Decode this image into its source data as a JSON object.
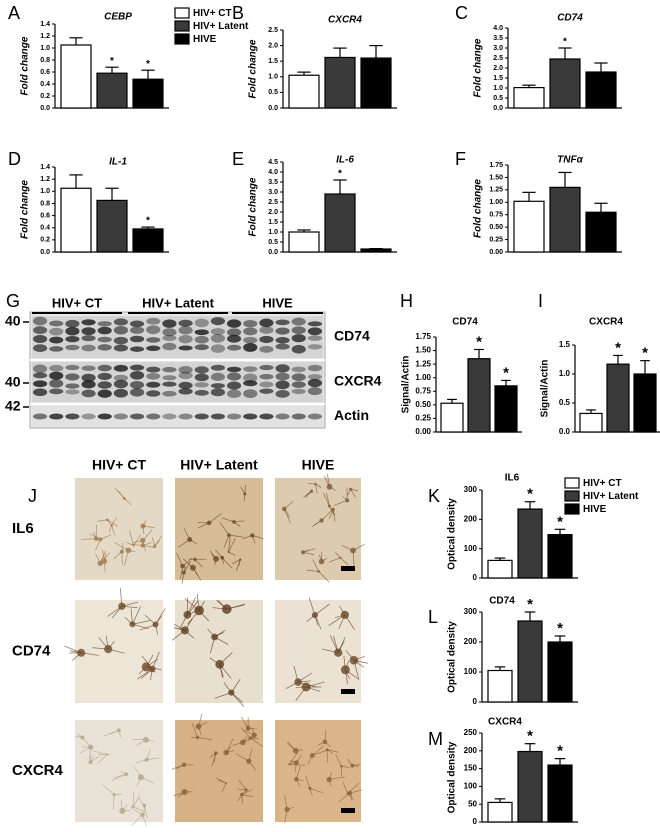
{
  "chart_data": [
    {
      "type": "bar",
      "panel": "A",
      "title": "CEBP",
      "ylabel": "Fold change",
      "ylim": [
        0,
        1.4
      ],
      "yticks": [
        {
          "value": 0,
          "label": "0.0"
        },
        0.2,
        0.4,
        0.6,
        0.8,
        {
          "value": 1,
          "label": "1.0"
        },
        1.2,
        1.4
      ],
      "series": [
        {
          "name": "HIV+ CT",
          "color": "#ffffff",
          "values": [
            1.05
          ],
          "errors": [
            0.12
          ]
        },
        {
          "name": "HIV+ Latent",
          "color": "#3a3a3a",
          "values": [
            0.58
          ],
          "errors": [
            0.1
          ],
          "annotation": "*"
        },
        {
          "name": "HIVE",
          "color": "#000000",
          "values": [
            0.48
          ],
          "errors": [
            0.15
          ],
          "annotation": "*"
        }
      ]
    },
    {
      "type": "bar",
      "panel": "B",
      "title": "CXCR4",
      "ylabel": "Fold change",
      "ylim": [
        0,
        2.5
      ],
      "yticks": [
        {
          "value": 0,
          "label": "0.0"
        },
        0.5,
        {
          "value": 1,
          "label": "1.0"
        },
        1.5,
        {
          "value": 2,
          "label": "2.0"
        },
        2.5
      ],
      "series": [
        {
          "color": "#ffffff",
          "values": [
            1.05
          ],
          "errors": [
            0.1
          ]
        },
        {
          "color": "#3a3a3a",
          "values": [
            1.62
          ],
          "errors": [
            0.3
          ]
        },
        {
          "color": "#000000",
          "values": [
            1.6
          ],
          "errors": [
            0.4
          ]
        }
      ]
    },
    {
      "type": "bar",
      "panel": "C",
      "title": "CD74",
      "ylabel": "Fold change",
      "ylim": [
        0,
        4
      ],
      "yticks": [
        {
          "value": 0,
          "label": "0.0"
        },
        0.5,
        {
          "value": 1,
          "label": "1.0"
        },
        1.5,
        {
          "value": 2,
          "label": "2.0"
        },
        2.5,
        {
          "value": 3,
          "label": "3.0"
        },
        3.5,
        {
          "value": 4,
          "label": "4.0"
        }
      ],
      "series": [
        {
          "color": "#ffffff",
          "values": [
            1.02
          ],
          "errors": [
            0.12
          ]
        },
        {
          "color": "#3a3a3a",
          "values": [
            2.45
          ],
          "errors": [
            0.55
          ],
          "annotation": "*"
        },
        {
          "color": "#000000",
          "values": [
            1.8
          ],
          "errors": [
            0.45
          ]
        }
      ]
    },
    {
      "type": "bar",
      "panel": "D",
      "title": "IL-1",
      "ylabel": "Fold change",
      "ylim": [
        0,
        1.4
      ],
      "yticks": [
        {
          "value": 0,
          "label": "0.0"
        },
        0.2,
        0.4,
        0.6,
        0.8,
        {
          "value": 1,
          "label": "1.0"
        },
        1.2,
        1.4
      ],
      "series": [
        {
          "color": "#ffffff",
          "values": [
            1.05
          ],
          "errors": [
            0.22
          ]
        },
        {
          "color": "#3a3a3a",
          "values": [
            0.85
          ],
          "errors": [
            0.2
          ]
        },
        {
          "color": "#000000",
          "values": [
            0.38
          ],
          "errors": [
            0.03
          ],
          "annotation": "*"
        }
      ]
    },
    {
      "type": "bar",
      "panel": "E",
      "title": "IL-6",
      "ylabel": "Fold change",
      "ylim": [
        0,
        4.5
      ],
      "yticks": [
        {
          "value": 0,
          "label": "0.0"
        },
        0.5,
        {
          "value": 1,
          "label": "1.0"
        },
        1.5,
        {
          "value": 2,
          "label": "2.0"
        },
        2.5,
        {
          "value": 3,
          "label": "3.0"
        },
        3.5,
        {
          "value": 4,
          "label": "4.0"
        },
        4.5
      ],
      "series": [
        {
          "color": "#ffffff",
          "values": [
            1.0
          ],
          "errors": [
            0.1
          ]
        },
        {
          "color": "#3a3a3a",
          "values": [
            2.9
          ],
          "errors": [
            0.7
          ],
          "annotation": "*"
        },
        {
          "color": "#000000",
          "values": [
            0.15
          ],
          "errors": [
            0.02
          ]
        }
      ]
    },
    {
      "type": "bar",
      "panel": "F",
      "title": "TNFα",
      "ylabel": "Fold change",
      "ylim": [
        0,
        1.75
      ],
      "yticks": [
        {
          "value": 0,
          "label": "0.00"
        },
        {
          "value": 0.25,
          "label": "0.25"
        },
        {
          "value": 0.5,
          "label": "0.50"
        },
        {
          "value": 0.75,
          "label": "0.75"
        },
        {
          "value": 1,
          "label": "1.00"
        },
        {
          "value": 1.25,
          "label": "1.25"
        },
        {
          "value": 1.5,
          "label": "1.50"
        },
        {
          "value": 1.75,
          "label": "1.75"
        }
      ],
      "series": [
        {
          "color": "#ffffff",
          "values": [
            1.02
          ],
          "errors": [
            0.18
          ]
        },
        {
          "color": "#3a3a3a",
          "values": [
            1.3
          ],
          "errors": [
            0.3
          ]
        },
        {
          "color": "#000000",
          "values": [
            0.8
          ],
          "errors": [
            0.18
          ]
        }
      ]
    },
    {
      "type": "bar",
      "panel": "H",
      "title": "CD74",
      "ylabel": "Signal/Actin",
      "ylim": [
        0,
        1.75
      ],
      "yticks": [
        {
          "value": 0,
          "label": "0.00"
        },
        {
          "value": 0.25,
          "label": "0.25"
        },
        {
          "value": 0.5,
          "label": "0.50"
        },
        {
          "value": 0.75,
          "label": "0.75"
        },
        {
          "value": 1,
          "label": "1.00"
        },
        {
          "value": 1.25,
          "label": "1.25"
        },
        {
          "value": 1.5,
          "label": "1.50"
        },
        {
          "value": 1.75,
          "label": "1.75"
        }
      ],
      "series": [
        {
          "color": "#ffffff",
          "values": [
            0.53
          ],
          "errors": [
            0.07
          ]
        },
        {
          "color": "#3a3a3a",
          "values": [
            1.35
          ],
          "errors": [
            0.17
          ],
          "annotation": "*"
        },
        {
          "color": "#000000",
          "values": [
            0.85
          ],
          "errors": [
            0.1
          ],
          "annotation": "*"
        }
      ]
    },
    {
      "type": "bar",
      "panel": "I",
      "title": "CXCR4",
      "ylabel": "Signal/Actin",
      "ylim": [
        0,
        1.5
      ],
      "yticks": [
        {
          "value": 0,
          "label": "0.0"
        },
        0.5,
        {
          "value": 1,
          "label": "1.0"
        },
        1.5
      ],
      "series": [
        {
          "color": "#ffffff",
          "values": [
            0.32
          ],
          "errors": [
            0.06
          ]
        },
        {
          "color": "#3a3a3a",
          "values": [
            1.17
          ],
          "errors": [
            0.15
          ],
          "annotation": "*"
        },
        {
          "color": "#000000",
          "values": [
            1.0
          ],
          "errors": [
            0.23
          ],
          "annotation": "*"
        }
      ]
    },
    {
      "type": "bar",
      "panel": "K",
      "title": "IL6",
      "ylabel": "Optical density",
      "ylim": [
        0,
        300
      ],
      "yticks": [
        0,
        100,
        200,
        300
      ],
      "series": [
        {
          "name": "HIV+ CT",
          "color": "#ffffff",
          "values": [
            60
          ],
          "errors": [
            8
          ]
        },
        {
          "name": "HIV+ Latent",
          "color": "#3a3a3a",
          "values": [
            235
          ],
          "errors": [
            25
          ],
          "annotation": "*"
        },
        {
          "name": "HIVE",
          "color": "#000000",
          "values": [
            148
          ],
          "errors": [
            18
          ],
          "annotation": "*"
        }
      ]
    },
    {
      "type": "bar",
      "panel": "L",
      "title": "CD74",
      "ylabel": "Optical density",
      "ylim": [
        0,
        300
      ],
      "yticks": [
        0,
        100,
        200,
        300
      ],
      "series": [
        {
          "color": "#ffffff",
          "values": [
            105
          ],
          "errors": [
            12
          ]
        },
        {
          "color": "#3a3a3a",
          "values": [
            270
          ],
          "errors": [
            30
          ],
          "annotation": "*"
        },
        {
          "color": "#000000",
          "values": [
            200
          ],
          "errors": [
            20
          ],
          "annotation": "*"
        }
      ]
    },
    {
      "type": "bar",
      "panel": "M",
      "title": "CXCR4",
      "ylabel": "Optical density",
      "ylim": [
        0,
        250
      ],
      "yticks": [
        0,
        50,
        100,
        150,
        200,
        250
      ],
      "series": [
        {
          "color": "#ffffff",
          "values": [
            55
          ],
          "errors": [
            10
          ]
        },
        {
          "color": "#3a3a3a",
          "values": [
            198
          ],
          "errors": [
            22
          ],
          "annotation": "*"
        },
        {
          "color": "#000000",
          "values": [
            160
          ],
          "errors": [
            18
          ],
          "annotation": "*"
        }
      ]
    }
  ],
  "blot": {
    "panel": "G",
    "groups": [
      "HIV+ CT",
      "HIV+ Latent",
      "HIVE"
    ],
    "rows": [
      {
        "marker": "40",
        "label": "CD74"
      },
      {
        "marker": "40",
        "label": "CXCR4"
      },
      {
        "marker": "42",
        "label": "Actin"
      }
    ]
  },
  "micrographs": {
    "panel": "J",
    "columns": [
      "HIV+ CT",
      "HIV+ Latent",
      "HIVE"
    ],
    "rows": [
      "IL6",
      "CD74",
      "CXCR4"
    ]
  }
}
